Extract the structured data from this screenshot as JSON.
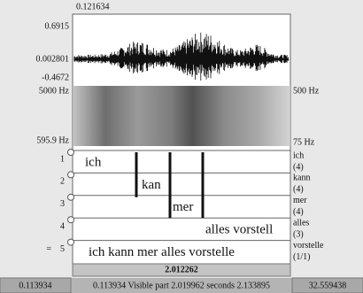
{
  "waveform": {
    "time_top": "0.121634",
    "max": "0.6915",
    "mid": "0.002801",
    "min": "-0.4672"
  },
  "spectrogram": {
    "left_top": "5000 Hz",
    "left_bottom": "595.9 Hz",
    "right_top": "500 Hz",
    "right_bottom": "75 Hz"
  },
  "tiers": [
    {
      "number": "1",
      "name": "ich",
      "count": "(4)",
      "intervals": [
        "ich"
      ]
    },
    {
      "number": "2",
      "name": "kann",
      "count": "(4)",
      "intervals": [
        "kan"
      ]
    },
    {
      "number": "3",
      "name": "mer",
      "count": "(4)",
      "intervals": [
        "mer"
      ]
    },
    {
      "number": "4",
      "name": "alles",
      "count": "(3)",
      "intervals": [
        "alles vorstell"
      ]
    },
    {
      "number": "5",
      "name": "vorstelle",
      "count": "(1/1)",
      "intervals": [
        "ich kann mer alles vorstelle"
      ]
    }
  ],
  "tier_marker": "=",
  "selection_duration": "2.012262",
  "status_bar": {
    "left": "0.113934",
    "middle": "0.113934 Visible part 2.019962 seconds 2.133895",
    "right": "32.559438"
  }
}
